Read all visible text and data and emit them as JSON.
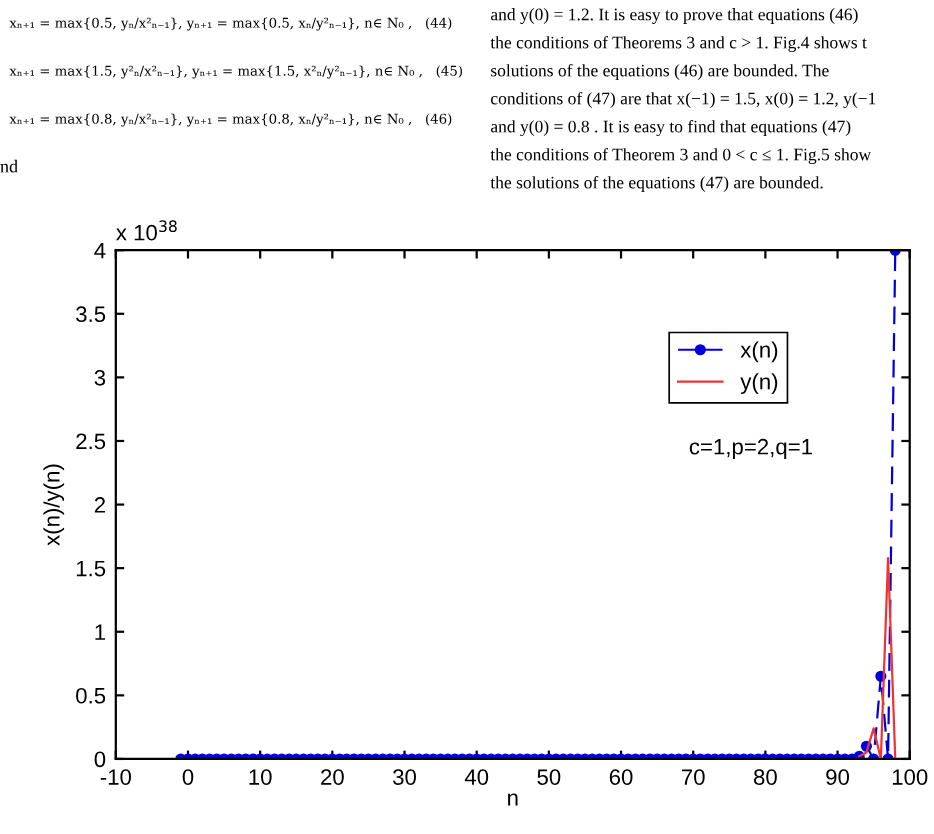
{
  "chart_data": {
    "type": "line",
    "xlabel": "n",
    "ylabel": "x(n)/y(n)",
    "x": [
      -1,
      0,
      1,
      2,
      3,
      4,
      5,
      6,
      7,
      8,
      9,
      10,
      11,
      12,
      13,
      14,
      15,
      16,
      17,
      18,
      19,
      20,
      21,
      22,
      23,
      24,
      25,
      26,
      27,
      28,
      29,
      30,
      31,
      32,
      33,
      34,
      35,
      36,
      37,
      38,
      39,
      40,
      41,
      42,
      43,
      44,
      45,
      46,
      47,
      48,
      49,
      50,
      51,
      52,
      53,
      54,
      55,
      56,
      57,
      58,
      59,
      60,
      61,
      62,
      63,
      64,
      65,
      66,
      67,
      68,
      69,
      70,
      71,
      72,
      73,
      74,
      75,
      76,
      77,
      78,
      79,
      80,
      81,
      82,
      83,
      84,
      85,
      86,
      87,
      88,
      89,
      90,
      91,
      92,
      93,
      94,
      95,
      96,
      97,
      98
    ],
    "series": [
      {
        "name": "x(n)",
        "color": "#0000dd",
        "marker": "circle",
        "line_style": "dashed",
        "values": [
          0,
          0,
          0,
          0,
          0,
          0,
          0,
          0,
          0,
          0,
          0,
          0,
          0,
          0,
          0,
          0,
          0,
          0,
          0,
          0,
          0,
          0,
          0,
          0,
          0,
          0,
          0,
          0,
          0,
          0,
          0,
          0,
          0,
          0,
          0,
          0,
          0,
          0,
          0,
          0,
          0,
          0,
          0,
          0,
          0,
          0,
          0,
          0,
          0,
          0,
          0,
          0,
          0,
          0,
          0,
          0,
          0,
          0,
          0,
          0,
          0,
          0,
          0,
          0,
          0,
          0,
          0,
          0,
          0,
          0,
          0,
          0,
          0,
          0,
          0,
          0,
          0,
          0,
          0,
          0,
          0,
          0,
          0,
          0,
          0,
          0,
          0,
          0,
          0,
          0,
          0,
          0,
          0,
          0,
          0.02,
          0.1,
          0,
          0.65,
          0,
          4.0
        ]
      },
      {
        "name": "y(n)",
        "color": "#ee3333",
        "marker": "none",
        "line_style": "solid",
        "values": [
          null,
          null,
          null,
          null,
          null,
          null,
          null,
          null,
          null,
          null,
          null,
          null,
          null,
          null,
          null,
          null,
          null,
          null,
          null,
          null,
          null,
          null,
          null,
          null,
          null,
          null,
          null,
          null,
          null,
          null,
          null,
          null,
          null,
          null,
          null,
          null,
          null,
          null,
          null,
          null,
          null,
          null,
          null,
          null,
          null,
          null,
          null,
          null,
          null,
          null,
          null,
          null,
          null,
          null,
          null,
          null,
          null,
          null,
          null,
          null,
          null,
          null,
          null,
          null,
          null,
          null,
          null,
          null,
          null,
          null,
          null,
          null,
          null,
          null,
          null,
          null,
          null,
          null,
          null,
          null,
          null,
          null,
          null,
          null,
          null,
          null,
          null,
          null,
          null,
          null,
          null,
          null,
          null,
          null,
          0.02,
          0.05,
          0.24,
          0,
          1.58,
          0
        ]
      }
    ],
    "xlim": [
      -10,
      100
    ],
    "xticks": [
      -10,
      0,
      10,
      20,
      30,
      40,
      50,
      60,
      70,
      80,
      90,
      100
    ],
    "ylim": [
      0,
      4
    ],
    "yticks": [
      0,
      0.5,
      1,
      1.5,
      2,
      2.5,
      3,
      3.5,
      4
    ],
    "grid": false,
    "legend": "top right",
    "annotations": [
      "x 10$^{38}$",
      "c=1,p=2,q=1",
      "xₙ₊₁ = max{0.5, yₙ/x²ₙ₋₁}, yₙ₊₁ = max{0.5, xₙ/y²ₙ₋₁}, n∈ N₀ ,   (44)",
      "xₙ₊₁ = max{1.5, y²ₙ/x²ₙ₋₁}, yₙ₊₁ = max{1.5, x²ₙ/y²ₙ₋₁}, n∈ N₀ ,   (45)",
      "xₙ₊₁ = max{0.8, yₙ/x²ₙ₋₁}, yₙ₊₁ = max{0.8, xₙ/y²ₙ₋₁}, n∈ N₀ ,   (46)",
      "nd",
      "and y(0) = 1.2. It is easy to prove that equations (46)",
      "the conditions of Theorems 3 and c > 1. Fig.4 shows t",
      "solutions of the equations (46) are bounded. The",
      "conditions of (47) are that x(−1) = 1.5, x(0) = 1.2, y(−1",
      "and y(0) = 0.8 . It is easy to find that equations (47)",
      "the conditions of Theorem 3 and 0 < c ≤ 1. Fig.5 show",
      "the solutions of the equations (47) are bounded."
    ]
  }
}
